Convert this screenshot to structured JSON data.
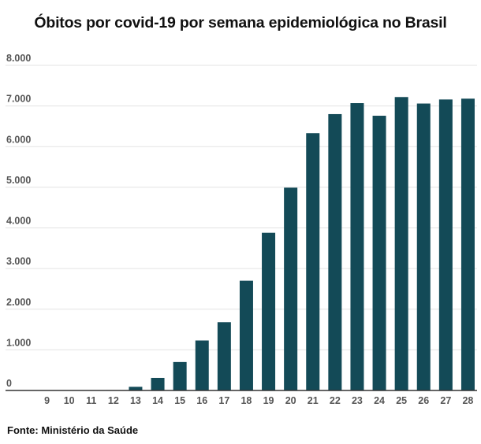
{
  "title": "Óbitos por covid-19 por semana epidemiológica no Brasil",
  "source": "Fonte: Ministério da Saúde",
  "colors": {
    "bar": "#134a57",
    "grid": "#e3e3e3",
    "axis": "#333333"
  },
  "chart_data": {
    "type": "bar",
    "title": "Óbitos por covid-19 por semana epidemiológica no Brasil",
    "xlabel": "",
    "ylabel": "",
    "grid": true,
    "ylim": [
      0,
      8000
    ],
    "yticks": [
      0,
      1000,
      2000,
      3000,
      4000,
      5000,
      6000,
      7000,
      8000
    ],
    "ytick_labels": [
      "0",
      "1.000",
      "2.000",
      "3.000",
      "4.000",
      "5.000",
      "6.000",
      "7.000",
      "8.000"
    ],
    "categories": [
      "9",
      "10",
      "11",
      "12",
      "13",
      "14",
      "15",
      "16",
      "17",
      "18",
      "19",
      "20",
      "21",
      "22",
      "23",
      "24",
      "25",
      "26",
      "27",
      "28"
    ],
    "values": [
      0,
      0,
      0,
      10,
      90,
      310,
      700,
      1230,
      1680,
      2700,
      3880,
      4990,
      6330,
      6800,
      7070,
      6760,
      7220,
      7060,
      7160,
      7180
    ]
  }
}
